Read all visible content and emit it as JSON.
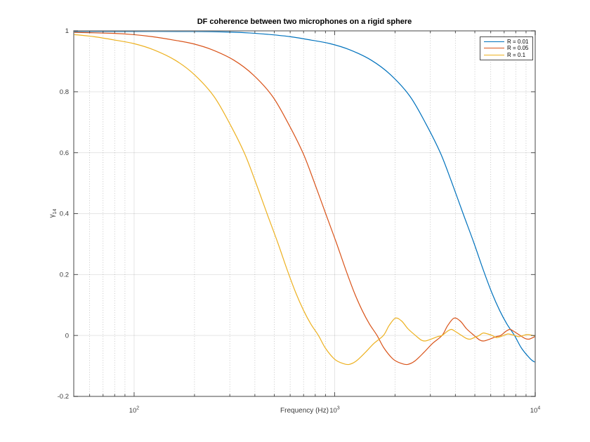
{
  "figure": {
    "background": "#ffffff"
  },
  "chart_data": {
    "type": "line",
    "title": "DF coherence between two microphones on a rigid sphere",
    "xlabel": "Frequency (Hz)",
    "ylabel": "γ₁₄",
    "ylabel_symbol": "γ",
    "ylabel_subscript": "14",
    "x_scale": "log",
    "xlim": [
      50,
      10000
    ],
    "ylim": [
      -0.2,
      1
    ],
    "grid": true,
    "x_major_ticks": [
      {
        "value": 100,
        "base": "10",
        "exp": "2"
      },
      {
        "value": 1000,
        "base": "10",
        "exp": "3"
      },
      {
        "value": 10000,
        "base": "10",
        "exp": "4"
      }
    ],
    "x_minor_ticks": [
      60,
      70,
      80,
      90,
      200,
      300,
      400,
      500,
      600,
      700,
      800,
      900,
      2000,
      3000,
      4000,
      5000,
      6000,
      7000,
      8000,
      9000
    ],
    "y_ticks": [
      {
        "value": 1,
        "label": "1"
      },
      {
        "value": 0.8,
        "label": "0.8"
      },
      {
        "value": 0.6,
        "label": "0.6"
      },
      {
        "value": 0.4,
        "label": "0.4"
      },
      {
        "value": 0.2,
        "label": "0.2"
      },
      {
        "value": 0,
        "label": "0"
      },
      {
        "value": -0.2,
        "label": "-0.2"
      }
    ],
    "legend": {
      "position": "top-right",
      "entries": [
        "R = 0.01",
        "R = 0.05",
        "R = 0.1"
      ]
    },
    "axis_color": "#848484",
    "tick_color": "#4d4d4d",
    "text_color": "#3b3b3b",
    "grid_major_color": "rgba(0,0,0,0.10)",
    "grid_minor_color": "rgba(0,0,0,0.28)",
    "series": [
      {
        "name": "R = 0.01",
        "color": "#0072BD",
        "points": [
          [
            50,
            0.998
          ],
          [
            100,
            0.998
          ],
          [
            200,
            0.998
          ],
          [
            300,
            0.996
          ],
          [
            380,
            0.993
          ],
          [
            475,
            0.988
          ],
          [
            599,
            0.981
          ],
          [
            760,
            0.97
          ],
          [
            950,
            0.958
          ],
          [
            1188,
            0.938
          ],
          [
            1520,
            0.904
          ],
          [
            1900,
            0.856
          ],
          [
            2375,
            0.785
          ],
          [
            2850,
            0.695
          ],
          [
            3363,
            0.6
          ],
          [
            3800,
            0.51
          ],
          [
            4370,
            0.4
          ],
          [
            4940,
            0.305
          ],
          [
            5510,
            0.215
          ],
          [
            6080,
            0.14
          ],
          [
            6650,
            0.082
          ],
          [
            7220,
            0.038
          ],
          [
            7885,
            0.0
          ],
          [
            8550,
            -0.042
          ],
          [
            9500,
            -0.078
          ],
          [
            10000,
            -0.088
          ]
        ]
      },
      {
        "name": "R = 0.05",
        "color": "#D95319",
        "points": [
          [
            50,
            0.995
          ],
          [
            78,
            0.992
          ],
          [
            98,
            0.988
          ],
          [
            123,
            0.981
          ],
          [
            157,
            0.97
          ],
          [
            196,
            0.958
          ],
          [
            245,
            0.938
          ],
          [
            314,
            0.904
          ],
          [
            392,
            0.856
          ],
          [
            490,
            0.785
          ],
          [
            588,
            0.695
          ],
          [
            694,
            0.6
          ],
          [
            784,
            0.51
          ],
          [
            902,
            0.4
          ],
          [
            1019,
            0.305
          ],
          [
            1137,
            0.215
          ],
          [
            1254,
            0.14
          ],
          [
            1372,
            0.082
          ],
          [
            1490,
            0.038
          ],
          [
            1627,
            0.0
          ],
          [
            1764,
            -0.042
          ],
          [
            1960,
            -0.078
          ],
          [
            2156,
            -0.092
          ],
          [
            2313,
            -0.095
          ],
          [
            2509,
            -0.084
          ],
          [
            2783,
            -0.056
          ],
          [
            3077,
            -0.026
          ],
          [
            3430,
            0.0
          ],
          [
            3665,
            0.033
          ],
          [
            3940,
            0.057
          ],
          [
            4234,
            0.047
          ],
          [
            4547,
            0.022
          ],
          [
            4959,
            0.0
          ],
          [
            5292,
            -0.015
          ],
          [
            5547,
            -0.018
          ],
          [
            5880,
            -0.013
          ],
          [
            6370,
            -0.004
          ],
          [
            6723,
            0.0
          ],
          [
            7154,
            0.014
          ],
          [
            7487,
            0.02
          ],
          [
            7840,
            0.013
          ],
          [
            8408,
            0.0
          ],
          [
            8918,
            -0.01
          ],
          [
            9310,
            -0.012
          ],
          [
            9800,
            -0.006
          ],
          [
            10000,
            -0.003
          ]
        ]
      },
      {
        "name": "R = 0.1",
        "color": "#EDB120",
        "points": [
          [
            50,
            0.988
          ],
          [
            63,
            0.981
          ],
          [
            80,
            0.97
          ],
          [
            100,
            0.958
          ],
          [
            125,
            0.938
          ],
          [
            160,
            0.904
          ],
          [
            200,
            0.856
          ],
          [
            250,
            0.785
          ],
          [
            300,
            0.695
          ],
          [
            354,
            0.6
          ],
          [
            400,
            0.51
          ],
          [
            460,
            0.4
          ],
          [
            520,
            0.305
          ],
          [
            580,
            0.215
          ],
          [
            640,
            0.14
          ],
          [
            700,
            0.082
          ],
          [
            760,
            0.038
          ],
          [
            830,
            0.0
          ],
          [
            900,
            -0.042
          ],
          [
            1000,
            -0.078
          ],
          [
            1100,
            -0.092
          ],
          [
            1180,
            -0.095
          ],
          [
            1280,
            -0.084
          ],
          [
            1420,
            -0.056
          ],
          [
            1570,
            -0.026
          ],
          [
            1750,
            0.0
          ],
          [
            1870,
            0.033
          ],
          [
            2010,
            0.057
          ],
          [
            2160,
            0.047
          ],
          [
            2320,
            0.022
          ],
          [
            2530,
            0.0
          ],
          [
            2700,
            -0.015
          ],
          [
            2830,
            -0.018
          ],
          [
            3000,
            -0.013
          ],
          [
            3250,
            -0.004
          ],
          [
            3430,
            0.0
          ],
          [
            3650,
            0.014
          ],
          [
            3820,
            0.02
          ],
          [
            4000,
            0.013
          ],
          [
            4290,
            0.0
          ],
          [
            4550,
            -0.01
          ],
          [
            4750,
            -0.012
          ],
          [
            5000,
            -0.006
          ],
          [
            5250,
            0.0
          ],
          [
            5500,
            0.008
          ],
          [
            5800,
            0.005
          ],
          [
            6100,
            0.0
          ],
          [
            6400,
            -0.007
          ],
          [
            6700,
            -0.004
          ],
          [
            6950,
            0.0
          ],
          [
            7300,
            0.005
          ],
          [
            7600,
            0.003
          ],
          [
            7900,
            0.0
          ],
          [
            8300,
            -0.004
          ],
          [
            8700,
            0.0
          ],
          [
            9200,
            0.003
          ],
          [
            9700,
            0.0
          ],
          [
            10000,
            -0.002
          ]
        ]
      }
    ]
  }
}
